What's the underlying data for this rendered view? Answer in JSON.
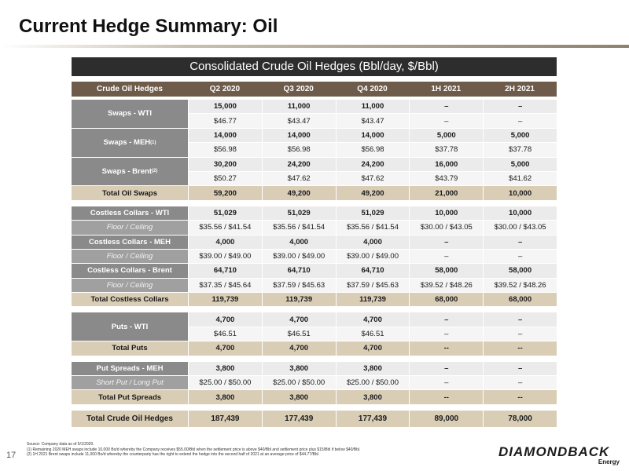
{
  "page": {
    "title": "Current Hedge Summary: Oil",
    "page_number": "17"
  },
  "table": {
    "banner": "Consolidated Crude Oil Hedges (Bbl/day, $/Bbl)",
    "headers": [
      "Crude Oil Hedges",
      "Q2 2020",
      "Q3 2020",
      "Q4 2020",
      "1H 2021",
      "2H 2021"
    ],
    "swaps_wti": {
      "label": "Swaps - WTI",
      "volume": [
        "15,000",
        "11,000",
        "11,000",
        "–",
        "–"
      ],
      "price": [
        "$46.77",
        "$43.47",
        "$43.47",
        "–",
        "–"
      ]
    },
    "swaps_meh": {
      "label": "Swaps - MEH",
      "sup": "(1)",
      "volume": [
        "14,000",
        "14,000",
        "14,000",
        "5,000",
        "5,000"
      ],
      "price": [
        "$56.98",
        "$56.98",
        "$56.98",
        "$37.78",
        "$37.78"
      ]
    },
    "swaps_brent": {
      "label": "Swaps - Brent",
      "sup": "(2)",
      "volume": [
        "30,200",
        "24,200",
        "24,200",
        "16,000",
        "5,000"
      ],
      "price": [
        "$50.27",
        "$47.62",
        "$47.62",
        "$43.79",
        "$41.62"
      ]
    },
    "total_swaps": {
      "label": "Total Oil Swaps",
      "values": [
        "59,200",
        "49,200",
        "49,200",
        "21,000",
        "10,000"
      ]
    },
    "collars_wti": {
      "label": "Costless Collars - WTI",
      "values": [
        "51,029",
        "51,029",
        "51,029",
        "10,000",
        "10,000"
      ]
    },
    "collars_wti_fc": {
      "label": "Floor / Ceiling",
      "values": [
        "$35.56 / $41.54",
        "$35.56 / $41.54",
        "$35.56 / $41.54",
        "$30.00 / $43.05",
        "$30.00 / $43.05"
      ]
    },
    "collars_meh": {
      "label": "Costless Collars - MEH",
      "values": [
        "4,000",
        "4,000",
        "4,000",
        "–",
        "–"
      ]
    },
    "collars_meh_fc": {
      "label": "Floor / Ceiling",
      "values": [
        "$39.00 / $49.00",
        "$39.00 / $49.00",
        "$39.00 / $49.00",
        "–",
        "–"
      ]
    },
    "collars_brent": {
      "label": "Costless Collars - Brent",
      "values": [
        "64,710",
        "64,710",
        "64,710",
        "58,000",
        "58,000"
      ]
    },
    "collars_brent_fc": {
      "label": "Floor / Ceiling",
      "values": [
        "$37.35 / $45.64",
        "$37.59 / $45.63",
        "$37.59 / $45.63",
        "$39.52 / $48.26",
        "$39.52 / $48.26"
      ]
    },
    "total_collars": {
      "label": "Total Costless Collars",
      "values": [
        "119,739",
        "119,739",
        "119,739",
        "68,000",
        "68,000"
      ]
    },
    "puts_wti": {
      "label": "Puts - WTI",
      "volume": [
        "4,700",
        "4,700",
        "4,700",
        "–",
        "–"
      ],
      "price": [
        "$46.51",
        "$46.51",
        "$46.51",
        "–",
        "–"
      ]
    },
    "total_puts": {
      "label": "Total Puts",
      "values": [
        "4,700",
        "4,700",
        "4,700",
        "--",
        "--"
      ]
    },
    "put_spreads_meh": {
      "label": "Put Spreads - MEH",
      "values": [
        "3,800",
        "3,800",
        "3,800",
        "–",
        "–"
      ]
    },
    "put_spreads_sl": {
      "label": "Short Put / Long Put",
      "values": [
        "$25.00 / $50.00",
        "$25.00 / $50.00",
        "$25.00 / $50.00",
        "–",
        "–"
      ]
    },
    "total_put_spreads": {
      "label": "Total Put Spreads",
      "values": [
        "3,800",
        "3,800",
        "3,800",
        "--",
        "--"
      ]
    },
    "grand_total": {
      "label": "Total Crude Oil Hedges",
      "values": [
        "187,439",
        "177,439",
        "177,439",
        "89,000",
        "78,000"
      ]
    }
  },
  "footer": {
    "source": "Source: Company data as of 5/1/2020.",
    "note1": "(1)      Remaining 2020 MEH swaps include 10,000 Bo/d whereby the Company receives $55.00/Bbl when the settlement price is above $40/Bbl and settlement price plus $15/Bbl if below $40/Bbl.",
    "note2": "(2)      1H 2021 Brent swaps include 11,000 Bo/d whereby the counterparty has the right to extend the hedge into the second half of 2021 at an average price of $44.77/Bbl."
  },
  "logo": {
    "name": "DIAMONDBACK",
    "sub": "Energy"
  }
}
